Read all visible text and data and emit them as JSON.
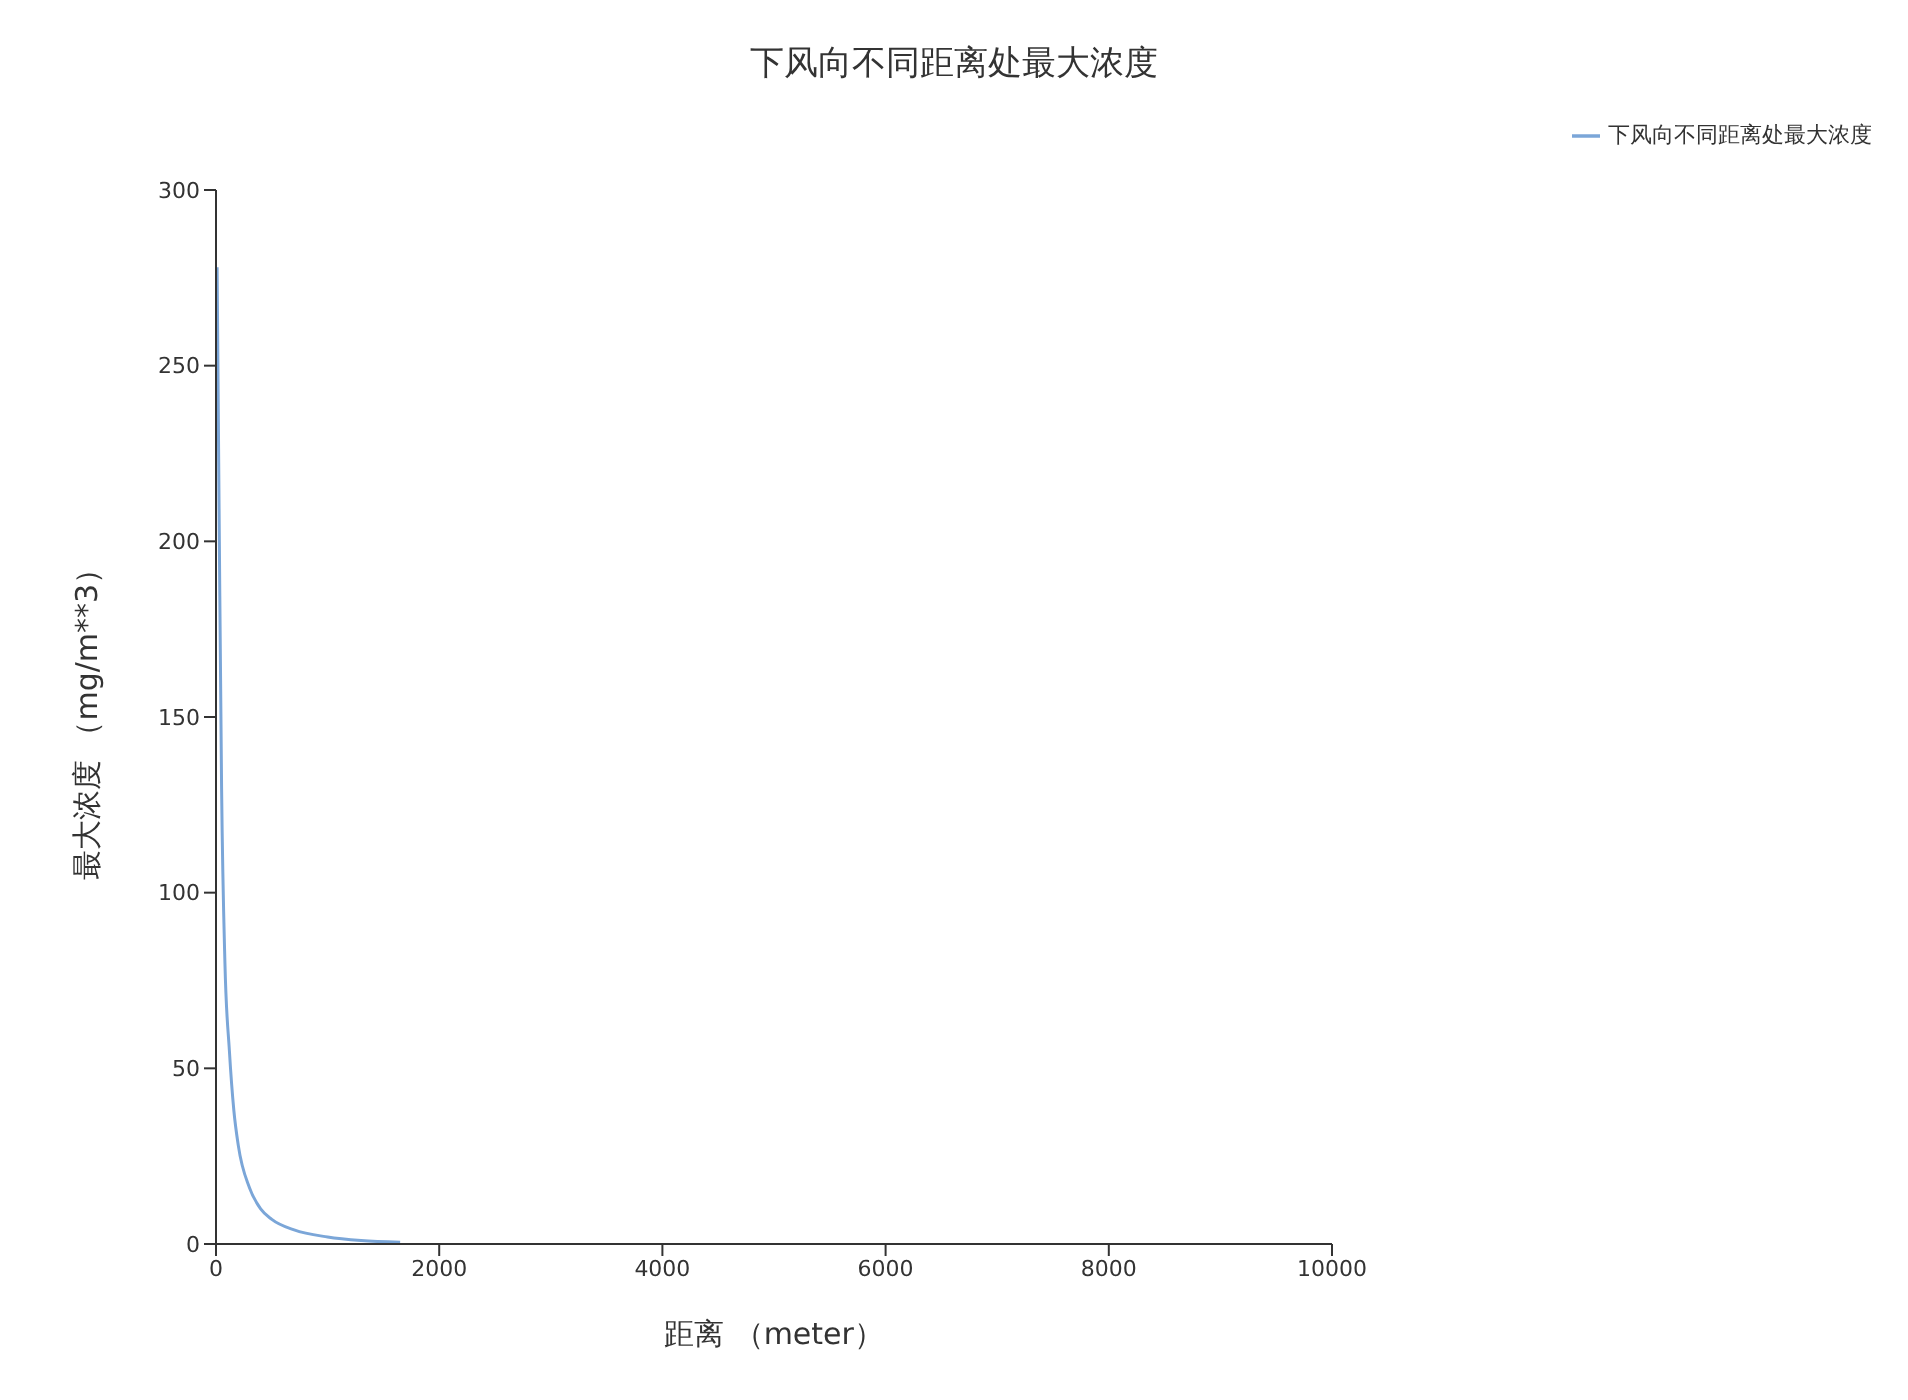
{
  "chart_data": {
    "type": "line",
    "title": "下风向不同距离处最大浓度",
    "xlabel": "距离 （meter）",
    "ylabel": "最大浓度 （mg/m**3）",
    "xlim": [
      0,
      10000
    ],
    "xticks": [
      0,
      2000,
      4000,
      6000,
      8000,
      10000
    ],
    "ylim": [
      0,
      300
    ],
    "yticks": [
      0,
      50,
      100,
      150,
      200,
      250,
      300
    ],
    "x": [
      10,
      30,
      50,
      80,
      120,
      160,
      200,
      300,
      400,
      500,
      700,
      1000,
      1300,
      1650
    ],
    "series": [
      {
        "name": "下风向不同距离处最大浓度",
        "color": "#7ba6d8",
        "values": [
          278,
          200,
          130,
          80,
          55,
          38,
          28,
          16,
          10,
          7,
          4,
          2,
          1,
          0.5
        ]
      }
    ],
    "legend": "top right",
    "grid": false,
    "marker": "none",
    "line_style": "solid"
  }
}
